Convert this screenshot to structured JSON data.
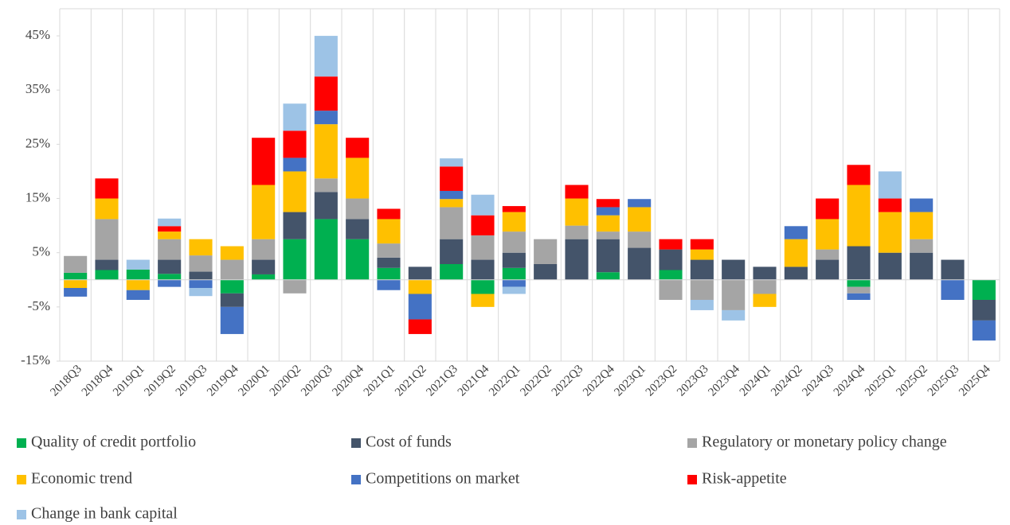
{
  "chart_data": {
    "type": "stacked_bar",
    "categories": [
      "2018Q3",
      "2018Q4",
      "2019Q1",
      "2019Q2",
      "2019Q3",
      "2019Q4",
      "2020Q1",
      "2020Q2",
      "2020Q3",
      "2020Q4",
      "2021Q1",
      "2021Q2",
      "2021Q3",
      "2021Q4",
      "2022Q1",
      "2022Q2",
      "2022Q3",
      "2022Q4",
      "2023Q1",
      "2023Q2",
      "2023Q3",
      "2023Q4",
      "2024Q1",
      "2024Q2",
      "2024Q3",
      "2024Q4",
      "2025Q1",
      "2025Q2",
      "2025Q3",
      "2025Q4"
    ],
    "series": [
      {
        "name": "Quality of credit portfolio",
        "color": "#00b050",
        "values": [
          1.3,
          1.8,
          1.9,
          1.1,
          0,
          -2.5,
          1.0,
          7.5,
          11.2,
          7.5,
          2.2,
          0,
          2.9,
          -2.6,
          2.2,
          0,
          0,
          1.4,
          0,
          1.8,
          0,
          0,
          0,
          0,
          0,
          -1.3,
          0,
          0,
          0,
          -3.7
        ]
      },
      {
        "name": "Cost of funds",
        "color": "#44546a",
        "values": [
          0,
          1.9,
          0,
          2.6,
          1.5,
          -2.5,
          2.7,
          5,
          5,
          3.7,
          1.9,
          2.4,
          4.6,
          3.7,
          2.8,
          2.9,
          7.5,
          6.1,
          5.9,
          3.8,
          3.7,
          3.7,
          2.4,
          2.4,
          3.7,
          6.2,
          5,
          5,
          3.7,
          -3.8
        ]
      },
      {
        "name": "Regulatory or monetary policy change",
        "color": "#a5a5a5",
        "values": [
          3.1,
          7.5,
          0,
          3.8,
          3.0,
          3.7,
          3.8,
          -2.5,
          2.5,
          3.8,
          2.6,
          0,
          5.9,
          4.5,
          3.9,
          4.6,
          2.5,
          1.4,
          3,
          -3.7,
          -3.7,
          -5.6,
          -2.6,
          0,
          1.9,
          -1.2,
          0,
          2.5,
          0,
          0
        ]
      },
      {
        "name": "Economic trend",
        "color": "#ffc000",
        "values": [
          -1.5,
          3.8,
          -1.9,
          1.4,
          3.0,
          2.5,
          10,
          7.5,
          10,
          7.5,
          4.5,
          -2.6,
          1.5,
          -2.4,
          3.6,
          0,
          5,
          3,
          4.5,
          0,
          1.9,
          0,
          -2.4,
          5.1,
          5.6,
          11.3,
          7.5,
          5,
          0,
          0
        ]
      },
      {
        "name": "Competitions on market",
        "color": "#4472c4",
        "values": [
          -1.6,
          0,
          -1.8,
          -1.3,
          -1.5,
          -5.0,
          0,
          2.5,
          2.5,
          0,
          -1.9,
          -4.7,
          1.5,
          0,
          -1.3,
          0,
          0,
          1.5,
          1.5,
          0,
          0,
          0,
          0,
          2.4,
          0,
          -1.2,
          0,
          2.5,
          -3.7,
          -3.7
        ]
      },
      {
        "name": "Risk-appetite",
        "color": "#ff0000",
        "values": [
          0,
          3.7,
          0,
          1.0,
          0,
          0,
          8.7,
          5,
          6.3,
          3.7,
          1.9,
          -2.7,
          4.5,
          3.7,
          1.1,
          0,
          2.5,
          1.5,
          0,
          1.9,
          1.9,
          0,
          0,
          0,
          3.8,
          3.7,
          2.5,
          0,
          0,
          0
        ]
      },
      {
        "name": "Change in bank capital",
        "color": "#9dc3e6",
        "values": [
          0,
          0,
          1.8,
          1.4,
          -1.5,
          0,
          0,
          5,
          7.5,
          0,
          0,
          0,
          1.5,
          3.8,
          -1.3,
          0,
          0,
          0,
          0,
          0,
          -1.9,
          -1.9,
          0,
          0,
          0,
          0,
          5,
          0,
          0,
          0
        ]
      }
    ],
    "ylim": [
      -15,
      50
    ],
    "yticks": [
      {
        "value": -15,
        "label": "-15%"
      },
      {
        "value": -5,
        "label": "-5%"
      },
      {
        "value": 5,
        "label": "5%"
      },
      {
        "value": 15,
        "label": "15%"
      },
      {
        "value": 25,
        "label": "25%"
      },
      {
        "value": 35,
        "label": "35%"
      },
      {
        "value": 45,
        "label": "45%"
      }
    ]
  }
}
